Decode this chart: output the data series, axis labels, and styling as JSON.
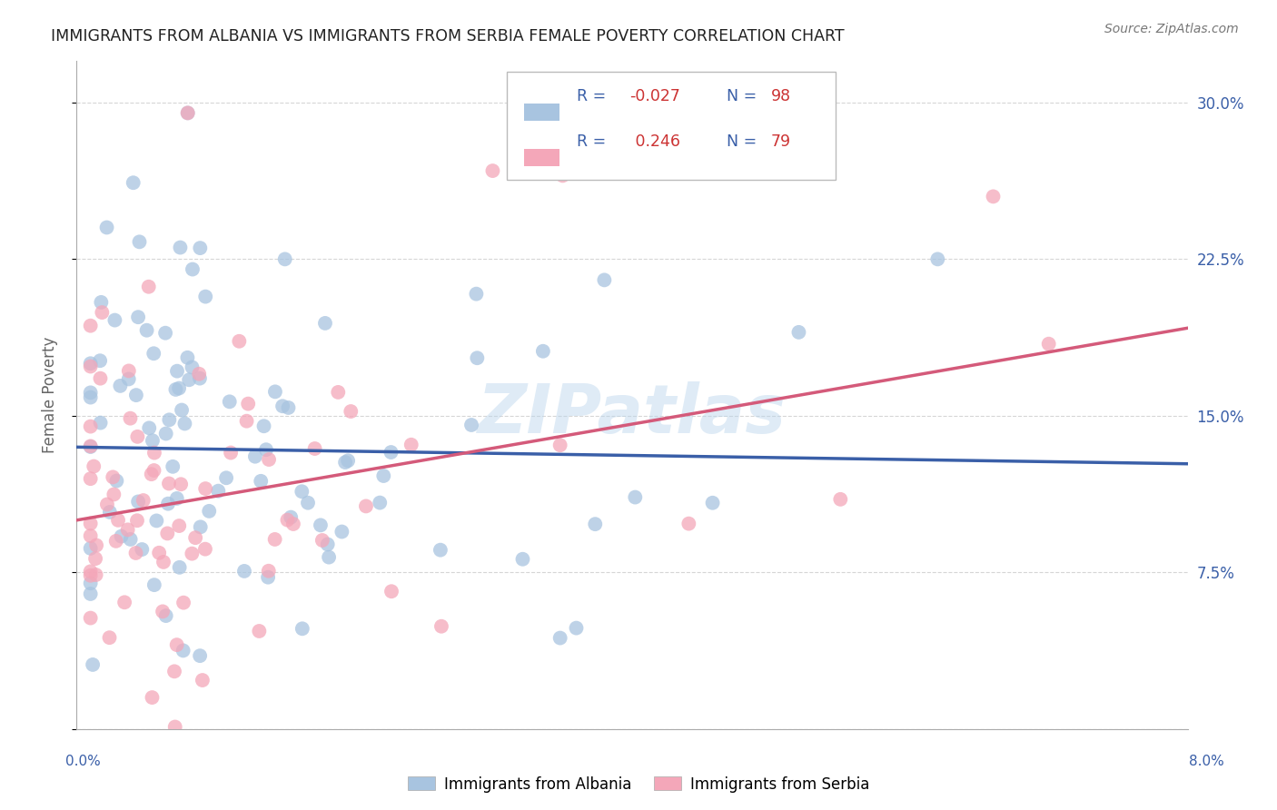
{
  "title": "IMMIGRANTS FROM ALBANIA VS IMMIGRANTS FROM SERBIA FEMALE POVERTY CORRELATION CHART",
  "source": "Source: ZipAtlas.com",
  "ylabel": "Female Poverty",
  "xlim": [
    0.0,
    0.08
  ],
  "ylim": [
    0.0,
    0.32
  ],
  "albania_color": "#a8c4e0",
  "serbia_color": "#f4a7b9",
  "albania_line_color": "#3a5fa8",
  "serbia_line_color": "#d45a7a",
  "legend_color": "#3a5fa8",
  "watermark": "ZIPatlas",
  "bg_color": "#ffffff",
  "grid_color": "#cccccc",
  "title_color": "#333333",
  "right_ytick_color": "#3a5fa8",
  "legend_text_color": "#3a5fa8",
  "legend_val_color": "#cc3333"
}
